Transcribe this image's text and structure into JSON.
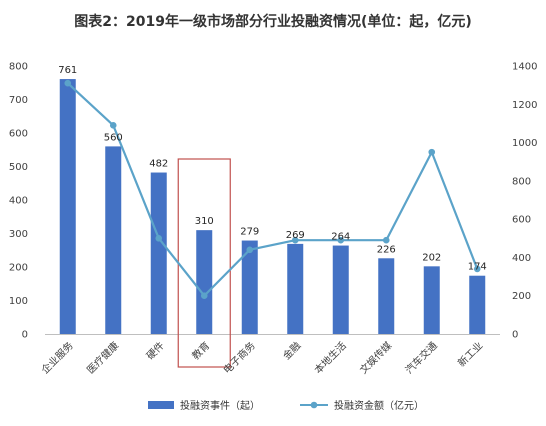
{
  "chart_data": {
    "type": "bar",
    "title": "图表2：2019年一级市场部分行业投融资情况(单位：起，亿元)",
    "categories": [
      "企业服务",
      "医疗健康",
      "硬件",
      "教育",
      "电子商务",
      "金融",
      "本地生活",
      "文娱传媒",
      "汽车交通",
      "新工业"
    ],
    "series": [
      {
        "name": "投融资事件（起）",
        "chart": "bar",
        "axis": "left",
        "color": "#4472C4",
        "values": [
          761,
          560,
          482,
          310,
          279,
          269,
          264,
          226,
          202,
          174
        ],
        "labels": [
          "761",
          "560",
          "482",
          "310",
          "279",
          "269",
          "264",
          "226",
          "202",
          "174"
        ]
      },
      {
        "name": "投融资金额（亿元）",
        "chart": "line",
        "axis": "right",
        "color": "#5BA3C9",
        "values": [
          1310,
          1090,
          500,
          200,
          440,
          490,
          490,
          490,
          950,
          340
        ]
      }
    ],
    "y_left": {
      "min": 0,
      "max": 800,
      "step": 100,
      "ticks": [
        "0",
        "100",
        "200",
        "300",
        "400",
        "500",
        "600",
        "700",
        "800"
      ]
    },
    "y_right": {
      "min": 0,
      "max": 1400,
      "step": 200,
      "ticks": [
        "0",
        "200",
        "400",
        "600",
        "800",
        "1000",
        "1200",
        "1400"
      ]
    },
    "highlight": {
      "category": "教育",
      "color": "#C0504D"
    },
    "grid": false,
    "legend_position": "bottom"
  }
}
